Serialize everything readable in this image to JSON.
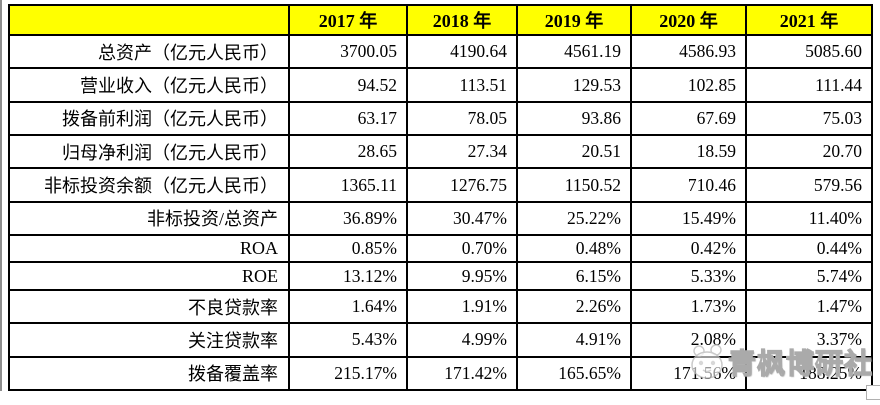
{
  "colors": {
    "header_bg": "#ffff00",
    "border": "#000000",
    "text": "#000000",
    "watermark_gray": "#aaaaaa",
    "page_bg": "#ffffff"
  },
  "chart_data": {
    "type": "table",
    "title": "",
    "columns": [
      "",
      "2017 年",
      "2018 年",
      "2019 年",
      "2020 年",
      "2021 年"
    ],
    "rows": [
      {
        "label": "总资产（亿元人民币）",
        "values": [
          "3700.05",
          "4190.64",
          "4561.19",
          "4586.93",
          "5085.60"
        ]
      },
      {
        "label": "营业收入（亿元人民币）",
        "values": [
          "94.52",
          "113.51",
          "129.53",
          "102.85",
          "111.44"
        ]
      },
      {
        "label": "拨备前利润（亿元人民币）",
        "values": [
          "63.17",
          "78.05",
          "93.86",
          "67.69",
          "75.03"
        ]
      },
      {
        "label": "归母净利润（亿元人民币）",
        "values": [
          "28.65",
          "27.34",
          "20.51",
          "18.59",
          "20.70"
        ]
      },
      {
        "label": "非标投资余额（亿元人民币）",
        "values": [
          "1365.11",
          "1276.75",
          "1150.52",
          "710.46",
          "579.56"
        ]
      },
      {
        "label": "非标投资/总资产",
        "values": [
          "36.89%",
          "30.47%",
          "25.22%",
          "15.49%",
          "11.40%"
        ]
      },
      {
        "label": "ROA",
        "values": [
          "0.85%",
          "0.70%",
          "0.48%",
          "0.42%",
          "0.44%"
        ]
      },
      {
        "label": "ROE",
        "values": [
          "13.12%",
          "9.95%",
          "6.15%",
          "5.33%",
          "5.74%"
        ]
      },
      {
        "label": "不良贷款率",
        "values": [
          "1.64%",
          "1.91%",
          "2.26%",
          "1.73%",
          "1.47%"
        ]
      },
      {
        "label": "关注贷款率",
        "values": [
          "5.43%",
          "4.99%",
          "4.91%",
          "2.08%",
          "3.37%"
        ]
      },
      {
        "label": "拨备覆盖率",
        "values": [
          "215.17%",
          "171.42%",
          "165.65%",
          "171.56%",
          "188.25%"
        ]
      }
    ]
  },
  "watermark": {
    "text": "青枫博研社",
    "icon": "publisher-logo-icon"
  }
}
